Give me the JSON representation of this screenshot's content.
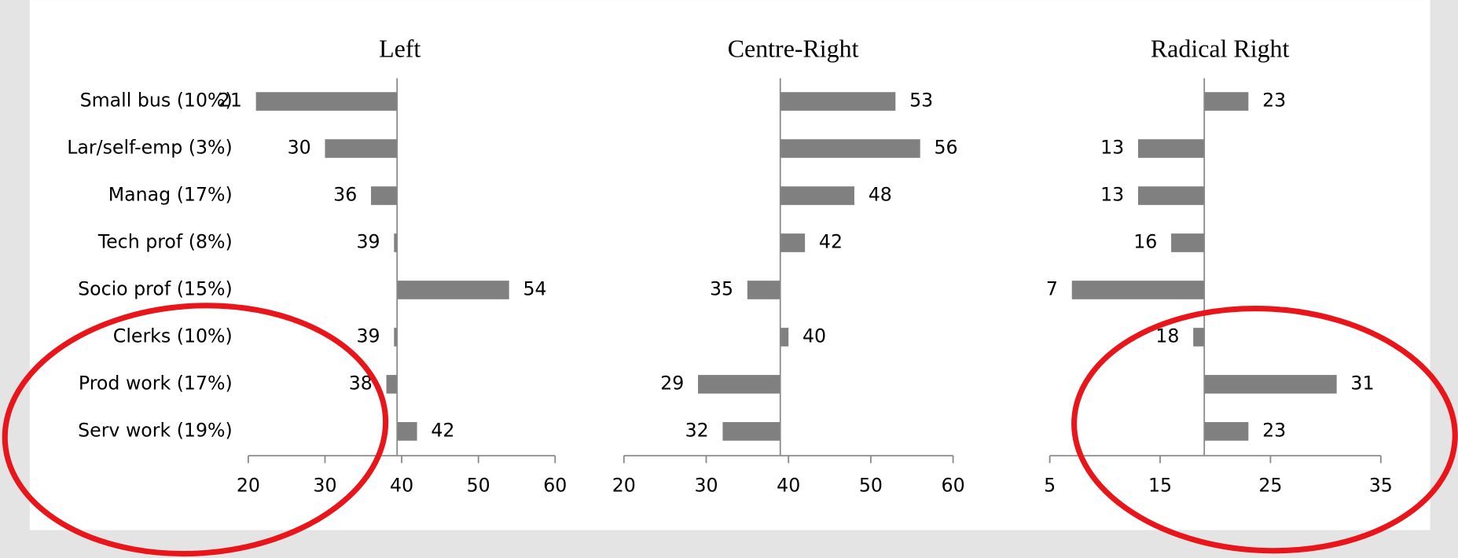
{
  "chart_data": [
    {
      "type": "bar",
      "title": "Left",
      "color": "#808080",
      "base": 39.4,
      "categories": [
        "Small bus (10%)",
        "Lar/self-emp (3%)",
        "Manag (17%)",
        "Tech prof (8%)",
        "Socio prof (15%)",
        "Clerks (10%)",
        "Prod work (17%)",
        "Serv work (19%)"
      ],
      "values": [
        21,
        30,
        36,
        39,
        54,
        39,
        38,
        42
      ],
      "xlim": [
        20,
        60
      ],
      "xticks": [
        20,
        30,
        40,
        50,
        60
      ]
    },
    {
      "type": "bar",
      "title": "Centre-Right",
      "color": "#808080",
      "base": 39,
      "values": [
        53,
        56,
        48,
        42,
        35,
        40,
        29,
        32
      ],
      "xlim": [
        20,
        60
      ],
      "xticks": [
        20,
        30,
        40,
        50,
        60
      ]
    },
    {
      "type": "bar",
      "title": "Radical Right",
      "color": "#808080",
      "base": 19,
      "values": [
        23,
        13,
        13,
        16,
        7,
        18,
        31,
        23
      ],
      "xlim": [
        5,
        35
      ],
      "xticks": [
        5,
        15,
        25,
        35
      ]
    }
  ]
}
